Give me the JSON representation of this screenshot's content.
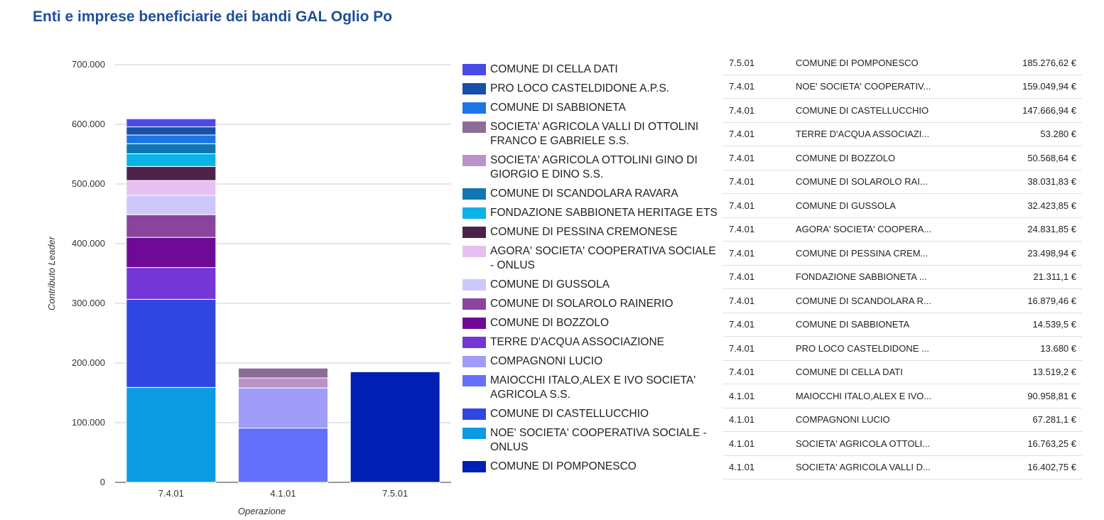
{
  "title": "Enti e imprese beneficiarie dei bandi GAL Oglio Po",
  "chart_data": {
    "type": "bar",
    "stacked": true,
    "xlabel": "Operazione",
    "ylabel": "Contributo Leader",
    "categories": [
      "7.4.01",
      "4.1.01",
      "7.5.01"
    ],
    "ylim": [
      0,
      700000
    ],
    "yticks": [
      0,
      100000,
      200000,
      300000,
      400000,
      500000,
      600000,
      700000
    ],
    "ytick_labels": [
      "0",
      "100.000",
      "200.000",
      "300.000",
      "400.000",
      "500.000",
      "600.000",
      "700.000"
    ],
    "grid": true,
    "legend_position": "right",
    "series": [
      {
        "name": "NOE' SOCIETA' COOPERATIVA SOCIALE - ONLUS",
        "color": "#0b9be0",
        "values": [
          159049.94,
          0,
          0
        ]
      },
      {
        "name": "COMUNE DI CASTELLUCCHIO",
        "color": "#3146e0",
        "values": [
          147666.94,
          0,
          0
        ]
      },
      {
        "name": "TERRE D'ACQUA ASSOCIAZIONE",
        "color": "#7436d4",
        "values": [
          53280,
          0,
          0
        ]
      },
      {
        "name": "COMUNE DI BOZZOLO",
        "color": "#6e0a96",
        "values": [
          50568.64,
          0,
          0
        ]
      },
      {
        "name": "COMUNE DI SOLAROLO RAINERIO",
        "color": "#8b449e",
        "values": [
          38031.83,
          0,
          0
        ]
      },
      {
        "name": "COMUNE DI GUSSOLA",
        "color": "#cdc8fb",
        "values": [
          32423.85,
          0,
          0
        ]
      },
      {
        "name": "AGORA' SOCIETA' COOPERATIVA SOCIALE - ONLUS",
        "color": "#e6c0f0",
        "values": [
          24831.85,
          0,
          0
        ]
      },
      {
        "name": "COMUNE DI PESSINA CREMONESE",
        "color": "#4e2248",
        "values": [
          23498.94,
          0,
          0
        ]
      },
      {
        "name": "FONDAZIONE SABBIONETA HERITAGE ETS",
        "color": "#0ab3e6",
        "values": [
          21311.1,
          0,
          0
        ]
      },
      {
        "name": "COMUNE DI SCANDOLARA RAVARA",
        "color": "#1077b4",
        "values": [
          16879.46,
          0,
          0
        ]
      },
      {
        "name": "COMUNE DI SABBIONETA",
        "color": "#1a76e6",
        "values": [
          14539.5,
          0,
          0
        ]
      },
      {
        "name": "PRO LOCO CASTELDIDONE A.P.S.",
        "color": "#1650a8",
        "values": [
          13680,
          0,
          0
        ]
      },
      {
        "name": "COMUNE DI CELLA DATI",
        "color": "#4a4ae8",
        "values": [
          13519.2,
          0,
          0
        ]
      },
      {
        "name": "MAIOCCHI ITALO,ALEX E IVO SOCIETA' AGRICOLA S.S.",
        "color": "#6570fa",
        "values": [
          0,
          90958.81,
          0
        ]
      },
      {
        "name": "COMPAGNONI LUCIO",
        "color": "#a09cf8",
        "values": [
          0,
          67281.1,
          0
        ]
      },
      {
        "name": "SOCIETA' AGRICOLA OTTOLINI GINO DI GIORGIO E DINO S.S.",
        "color": "#bb92c8",
        "values": [
          0,
          16763.25,
          0
        ]
      },
      {
        "name": "SOCIETA' AGRICOLA VALLI DI OTTOLINI FRANCO E GABRIELE S.S.",
        "color": "#8c6c98",
        "values": [
          0,
          16402.75,
          0
        ]
      },
      {
        "name": "COMUNE DI POMPONESCO",
        "color": "#0020b4",
        "values": [
          0,
          0,
          185276.62
        ]
      }
    ]
  },
  "legend": [
    {
      "label": "COMUNE DI CELLA DATI",
      "color": "#4a4ae8"
    },
    {
      "label": "PRO LOCO CASTELDIDONE A.P.S.",
      "color": "#1650a8"
    },
    {
      "label": "COMUNE DI SABBIONETA",
      "color": "#1a76e6"
    },
    {
      "label": "SOCIETA' AGRICOLA VALLI DI OTTOLINI FRANCO E GABRIELE S.S.",
      "color": "#8c6c98"
    },
    {
      "label": "SOCIETA' AGRICOLA OTTOLINI GINO DI GIORGIO E DINO S.S.",
      "color": "#bb92c8"
    },
    {
      "label": "COMUNE DI SCANDOLARA RAVARA",
      "color": "#1077b4"
    },
    {
      "label": "FONDAZIONE SABBIONETA HERITAGE ETS",
      "color": "#0ab3e6"
    },
    {
      "label": "COMUNE DI PESSINA CREMONESE",
      "color": "#4e2248"
    },
    {
      "label": "AGORA' SOCIETA' COOPERATIVA SOCIALE - ONLUS",
      "color": "#e6c0f0"
    },
    {
      "label": "COMUNE DI GUSSOLA",
      "color": "#cdc8fb"
    },
    {
      "label": "COMUNE DI SOLAROLO RAINERIO",
      "color": "#8b449e"
    },
    {
      "label": "COMUNE DI BOZZOLO",
      "color": "#6e0a96"
    },
    {
      "label": "TERRE D'ACQUA ASSOCIAZIONE",
      "color": "#7436d4"
    },
    {
      "label": "COMPAGNONI LUCIO",
      "color": "#a09cf8"
    },
    {
      "label": "MAIOCCHI ITALO,ALEX E IVO SOCIETA' AGRICOLA S.S.",
      "color": "#6570fa"
    },
    {
      "label": "COMUNE DI CASTELLUCCHIO",
      "color": "#3146e0"
    },
    {
      "label": "NOE' SOCIETA' COOPERATIVA SOCIALE - ONLUS",
      "color": "#0b9be0"
    },
    {
      "label": "COMUNE DI POMPONESCO",
      "color": "#0020b4"
    }
  ],
  "table": {
    "rows": [
      {
        "op": "7.5.01",
        "name": "COMUNE DI POMPONESCO",
        "value": "185.276,62 €"
      },
      {
        "op": "7.4.01",
        "name": "NOE' SOCIETA' COOPERATIV...",
        "value": "159.049,94 €"
      },
      {
        "op": "7.4.01",
        "name": "COMUNE DI CASTELLUCCHIO",
        "value": "147.666,94 €"
      },
      {
        "op": "7.4.01",
        "name": "TERRE D'ACQUA ASSOCIAZI...",
        "value": "53.280 €"
      },
      {
        "op": "7.4.01",
        "name": "COMUNE DI BOZZOLO",
        "value": "50.568,64 €"
      },
      {
        "op": "7.4.01",
        "name": "COMUNE DI SOLAROLO RAI...",
        "value": "38.031,83 €"
      },
      {
        "op": "7.4.01",
        "name": "COMUNE DI GUSSOLA",
        "value": "32.423,85 €"
      },
      {
        "op": "7.4.01",
        "name": "AGORA' SOCIETA' COOPERA...",
        "value": "24.831,85 €"
      },
      {
        "op": "7.4.01",
        "name": "COMUNE DI PESSINA CREM...",
        "value": "23.498,94 €"
      },
      {
        "op": "7.4.01",
        "name": "FONDAZIONE SABBIONETA ...",
        "value": "21.311,1 €"
      },
      {
        "op": "7.4.01",
        "name": "COMUNE DI SCANDOLARA R...",
        "value": "16.879,46 €"
      },
      {
        "op": "7.4.01",
        "name": "COMUNE DI SABBIONETA",
        "value": "14.539,5 €"
      },
      {
        "op": "7.4.01",
        "name": "PRO LOCO CASTELDIDONE ...",
        "value": "13.680 €"
      },
      {
        "op": "7.4.01",
        "name": "COMUNE DI CELLA DATI",
        "value": "13.519,2 €"
      },
      {
        "op": "4.1.01",
        "name": "MAIOCCHI ITALO,ALEX E IVO...",
        "value": "90.958,81 €"
      },
      {
        "op": "4.1.01",
        "name": "COMPAGNONI LUCIO",
        "value": "67.281,1 €"
      },
      {
        "op": "4.1.01",
        "name": "SOCIETA' AGRICOLA OTTOLI...",
        "value": "16.763,25 €"
      },
      {
        "op": "4.1.01",
        "name": "SOCIETA' AGRICOLA VALLI D...",
        "value": "16.402,75 €"
      }
    ]
  }
}
